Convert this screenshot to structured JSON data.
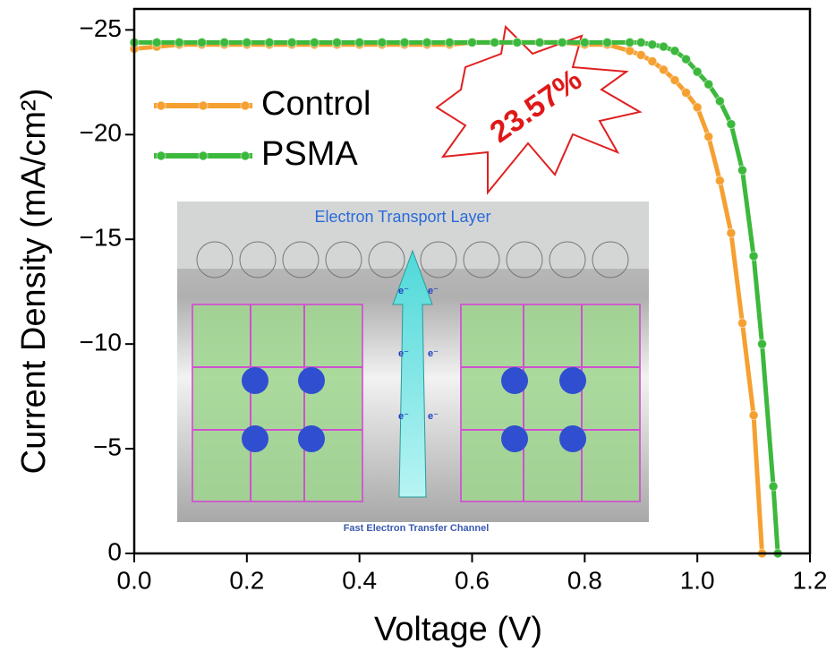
{
  "chart_data": {
    "type": "line",
    "xlabel": "Voltage (V)",
    "ylabel": "Current Density (mA/cm²)",
    "annotation": "23.57%",
    "legend": "upper left",
    "xlim": [
      0,
      1.2
    ],
    "ylim": [
      0,
      -26
    ],
    "xticks": [
      {
        "value": 0,
        "label": "0.0"
      },
      0.2,
      0.4,
      0.6,
      0.8,
      {
        "value": 1,
        "label": "1.0"
      },
      1.2
    ],
    "yticks": [
      {
        "value": 0,
        "label": "0"
      },
      {
        "value": -5,
        "label": "−5"
      },
      {
        "value": -10,
        "label": "−10"
      },
      {
        "value": -15,
        "label": "−15"
      },
      {
        "value": -20,
        "label": "−20"
      },
      {
        "value": -25,
        "label": "−25"
      }
    ],
    "x": [
      0,
      0.04,
      0.08,
      0.12,
      0.16,
      0.2,
      0.24,
      0.28,
      0.32,
      0.36,
      0.4,
      0.44,
      0.48,
      0.52,
      0.56,
      0.6,
      0.64,
      0.68,
      0.72,
      0.76,
      0.8,
      0.84,
      0.88,
      0.9,
      0.92,
      0.94,
      0.96,
      0.98,
      1,
      1.02,
      1.04,
      1.06,
      1.08,
      1.1,
      1.115,
      1.135,
      1.143
    ],
    "series": [
      {
        "name": "Control",
        "color": "#f5a031",
        "values": [
          -24.1,
          -24.2,
          -24.3,
          -24.3,
          -24.3,
          -24.3,
          -24.3,
          -24.3,
          -24.3,
          -24.3,
          -24.3,
          -24.3,
          -24.3,
          -24.3,
          -24.3,
          -24.4,
          -24.4,
          -24.4,
          -24.4,
          -24.4,
          -24.3,
          -24.3,
          -24.0,
          -23.8,
          -23.5,
          -23.1,
          -22.6,
          -22.0,
          -21.3,
          -19.9,
          -17.8,
          -15.3,
          -11.0,
          -6.6,
          0,
          null,
          null
        ]
      },
      {
        "name": "PSMA",
        "color": "#3cb83c",
        "values": [
          -24.4,
          -24.4,
          -24.4,
          -24.4,
          -24.4,
          -24.4,
          -24.4,
          -24.4,
          -24.4,
          -24.4,
          -24.4,
          -24.4,
          -24.4,
          -24.4,
          -24.4,
          -24.4,
          -24.4,
          -24.4,
          -24.4,
          -24.4,
          -24.4,
          -24.4,
          -24.4,
          -24.4,
          -24.3,
          -24.2,
          -24.0,
          -23.6,
          -23.0,
          -22.4,
          -21.6,
          -20.5,
          -18.3,
          -14.2,
          -10.0,
          -3.2,
          0
        ]
      }
    ]
  },
  "inset": {
    "title": "Electron Transport Layer",
    "caption": "Fast Electron Transfer Channel",
    "electron": "e⁻"
  }
}
